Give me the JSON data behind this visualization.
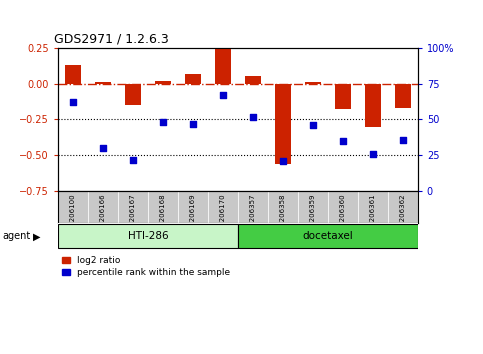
{
  "title": "GDS2971 / 1.2.6.3",
  "samples": [
    "GSM206100",
    "GSM206166",
    "GSM206167",
    "GSM206168",
    "GSM206169",
    "GSM206170",
    "GSM206357",
    "GSM206358",
    "GSM206359",
    "GSM206360",
    "GSM206361",
    "GSM206362"
  ],
  "log2_ratio": [
    0.13,
    0.01,
    -0.15,
    0.02,
    0.07,
    0.245,
    0.05,
    -0.56,
    0.01,
    -0.18,
    -0.3,
    -0.17
  ],
  "percentile_rank": [
    62,
    30,
    22,
    48,
    47,
    67,
    52,
    21,
    46,
    35,
    26,
    36
  ],
  "groups": [
    {
      "label": "HTI-286",
      "start": 0,
      "end": 6,
      "color_light": "#c8f5c8",
      "color_dark": "#44bb44"
    },
    {
      "label": "docetaxel",
      "start": 6,
      "end": 12,
      "color_light": "#44dd44",
      "color_dark": "#44bb44"
    }
  ],
  "bar_color": "#CC2200",
  "dot_color": "#0000CC",
  "ylim_left": [
    -0.75,
    0.25
  ],
  "ylim_right": [
    0,
    100
  ],
  "yticks_left": [
    -0.75,
    -0.5,
    -0.25,
    0,
    0.25
  ],
  "yticks_right": [
    0,
    25,
    50,
    75,
    100
  ],
  "agent_label": "agent",
  "legend_bar_label": "log2 ratio",
  "legend_dot_label": "percentile rank within the sample",
  "sample_bg": "#C8C8C8",
  "bar_width": 0.55
}
